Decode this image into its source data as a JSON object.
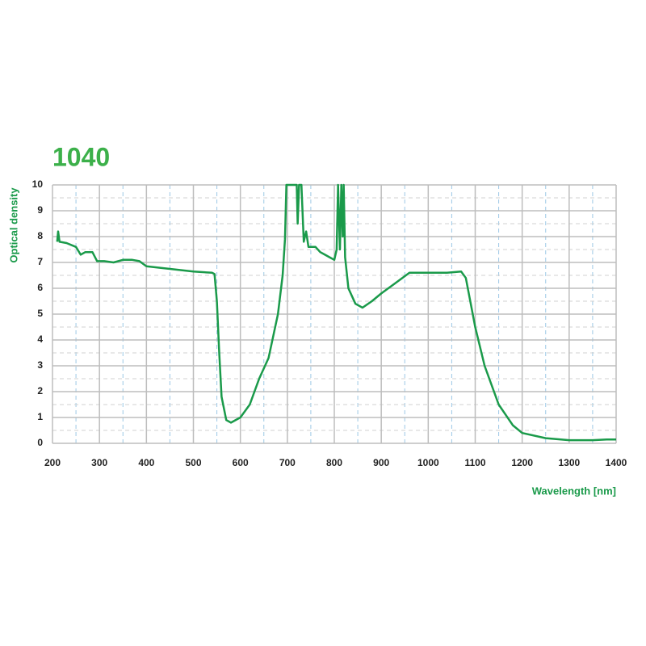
{
  "chart_data": {
    "type": "line",
    "title": "1040",
    "x_label": "Wavelength [nm]",
    "y_label": "Optical density",
    "x": [
      210,
      212,
      215,
      230,
      250,
      260,
      270,
      285,
      295,
      310,
      330,
      350,
      370,
      385,
      400,
      450,
      500,
      540,
      545,
      550,
      555,
      560,
      570,
      580,
      600,
      620,
      640,
      660,
      680,
      690,
      695,
      698,
      720,
      722,
      725,
      730,
      735,
      740,
      745,
      760,
      770,
      780,
      790,
      800,
      805,
      808,
      812,
      815,
      818,
      820,
      823,
      830,
      845,
      860,
      880,
      900,
      930,
      960,
      1000,
      1040,
      1070,
      1080,
      1100,
      1120,
      1150,
      1180,
      1200,
      1250,
      1300,
      1350,
      1380,
      1400
    ],
    "series": [
      {
        "name": "1040",
        "color": "#1a9a4a",
        "values": [
          7.8,
          8.2,
          7.8,
          7.75,
          7.6,
          7.3,
          7.4,
          7.4,
          7.05,
          7.05,
          7.0,
          7.1,
          7.1,
          7.05,
          6.85,
          6.75,
          6.65,
          6.6,
          6.55,
          5.5,
          3.5,
          1.8,
          0.9,
          0.8,
          1.0,
          1.5,
          2.5,
          3.3,
          5.0,
          6.5,
          7.9,
          10,
          10,
          8.5,
          10,
          10,
          7.8,
          8.2,
          7.6,
          7.6,
          7.4,
          7.3,
          7.2,
          7.1,
          7.5,
          10,
          7.5,
          10,
          8,
          10,
          7.2,
          6.0,
          5.4,
          5.25,
          5.5,
          5.8,
          6.2,
          6.6,
          6.6,
          6.6,
          6.65,
          6.4,
          4.5,
          3.0,
          1.5,
          0.7,
          0.4,
          0.2,
          0.12,
          0.12,
          0.15,
          0.15
        ]
      }
    ],
    "xlim": [
      200,
      1400
    ],
    "ylim": [
      0,
      10
    ],
    "xticks": [
      200,
      300,
      400,
      500,
      600,
      700,
      800,
      900,
      1000,
      1100,
      1200,
      1300,
      1400
    ],
    "yticks": [
      0,
      1,
      2,
      3,
      4,
      5,
      6,
      7,
      8,
      9,
      10
    ],
    "grid": true,
    "title_color": "#3cb04a",
    "label_color": "#1a9a4a"
  }
}
